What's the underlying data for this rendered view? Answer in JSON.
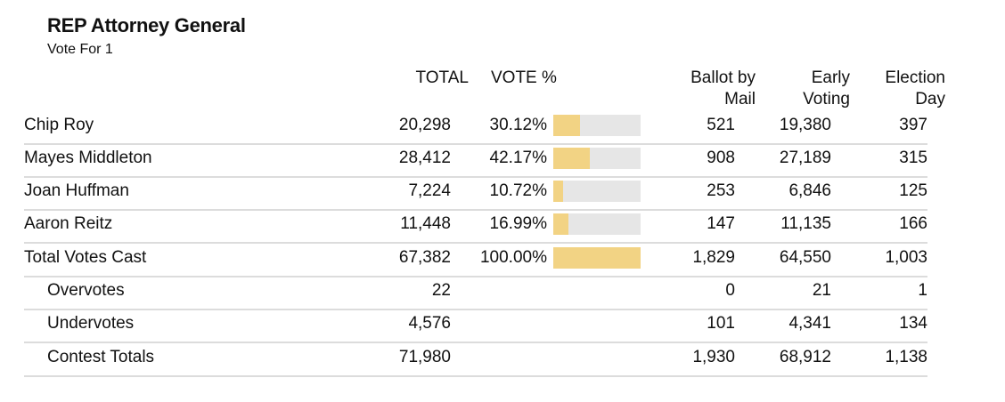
{
  "contest": {
    "title": "REP Attorney General",
    "subtitle": "Vote For 1"
  },
  "columns": {
    "total": "TOTAL",
    "vote_pct": "VOTE %",
    "mail_1": "Ballot by",
    "mail_2": "Mail",
    "early_1": "Early",
    "early_2": "Voting",
    "eday_1": "Election",
    "eday_2": "Day"
  },
  "rows": [
    {
      "name": "Chip Roy",
      "total": "20,298",
      "pct": "30.12%",
      "share": 0.3012,
      "mail": "521",
      "early": "19,380",
      "eday": "397"
    },
    {
      "name": "Mayes Middleton",
      "total": "28,412",
      "pct": "42.17%",
      "share": 0.4217,
      "mail": "908",
      "early": "27,189",
      "eday": "315"
    },
    {
      "name": "Joan Huffman",
      "total": "7,224",
      "pct": "10.72%",
      "share": 0.1072,
      "mail": "253",
      "early": "6,846",
      "eday": "125"
    },
    {
      "name": "Aaron Reitz",
      "total": "11,448",
      "pct": "16.99%",
      "share": 0.1699,
      "mail": "147",
      "early": "11,135",
      "eday": "166"
    },
    {
      "name": "Total Votes Cast",
      "total": "67,382",
      "pct": "100.00%",
      "share": 1.0,
      "mail": "1,829",
      "early": "64,550",
      "eday": "1,003"
    },
    {
      "name": "Overvotes",
      "total": "22",
      "mail": "0",
      "early": "21",
      "eday": "1"
    },
    {
      "name": "Undervotes",
      "total": "4,576",
      "mail": "101",
      "early": "4,341",
      "eday": "134"
    },
    {
      "name": "Contest Totals",
      "total": "71,980",
      "mail": "1,930",
      "early": "68,912",
      "eday": "1,138"
    }
  ],
  "colors": {
    "bar_fill": "#f2d384",
    "bar_track": "#e6e6e6",
    "row_rule": "#dcdcdc"
  }
}
